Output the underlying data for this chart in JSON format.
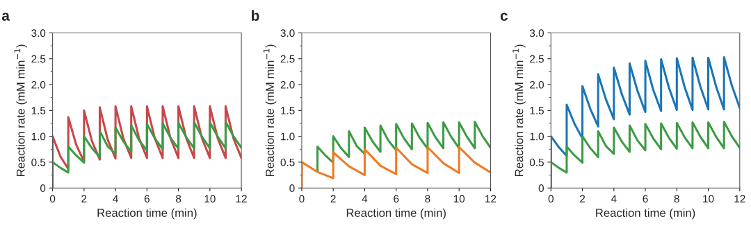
{
  "chart_data": [
    {
      "type": "line",
      "title": "a",
      "xlabel": "Reaction time (min)",
      "ylabel": "Reaction rate (mM min$^{−1}$)",
      "xlim": [
        0,
        12
      ],
      "ylim": [
        0,
        3
      ],
      "xticks": [
        0,
        2,
        4,
        6,
        8,
        10,
        12
      ],
      "yticks": [
        0,
        0.5,
        {
          "value": 1,
          "label": "1.0"
        },
        1.5,
        {
          "value": 2,
          "label": "2.0"
        },
        2.5,
        {
          "value": 3,
          "label": "3.0"
        }
      ],
      "grid": false,
      "marker": "none",
      "line_style": "solid",
      "series": [
        {
          "color": "#c8464a",
          "x": [
            0,
            0,
            0.5,
            1,
            1,
            1.5,
            2,
            2,
            2.5,
            3,
            3,
            3.5,
            4,
            4,
            4.5,
            5,
            5,
            5.5,
            6,
            6,
            6.5,
            7,
            7,
            7.5,
            8,
            8,
            8.5,
            9,
            9,
            9.5,
            10,
            10,
            10.5,
            11,
            11,
            11.5,
            12
          ],
          "values": [
            0,
            1.0,
            0.61,
            0.37,
            1.37,
            0.84,
            0.51,
            1.5,
            0.91,
            0.55,
            1.56,
            0.94,
            0.57,
            1.58,
            0.96,
            0.58,
            1.58,
            0.96,
            0.58,
            1.58,
            0.96,
            0.58,
            1.58,
            0.96,
            0.58,
            1.58,
            0.96,
            0.58,
            1.58,
            0.96,
            0.58,
            1.58,
            0.96,
            0.58,
            1.58,
            0.96,
            0.58
          ]
        },
        {
          "color": "#3d9a45",
          "x": [
            0,
            0.5,
            1,
            1,
            1.5,
            2,
            2,
            2.5,
            3,
            3,
            3.5,
            4,
            4,
            4.5,
            5,
            5,
            5.5,
            6,
            6,
            6.5,
            7,
            7,
            7.5,
            8,
            8,
            8.5,
            9,
            9,
            9.5,
            10,
            10,
            10.5,
            11,
            11,
            11.5,
            12
          ],
          "values": [
            0.5,
            0.39,
            0.3,
            0.8,
            0.63,
            0.49,
            1.0,
            0.77,
            0.6,
            1.1,
            0.81,
            0.66,
            1.17,
            0.9,
            0.7,
            1.21,
            0.92,
            0.73,
            1.24,
            0.96,
            0.75,
            1.25,
            0.97,
            0.76,
            1.26,
            0.98,
            0.77,
            1.27,
            0.99,
            0.77,
            1.27,
            0.99,
            0.77,
            1.28,
            1.0,
            0.78
          ]
        }
      ]
    },
    {
      "type": "line",
      "title": "b",
      "xlabel": "Reaction time (min)",
      "ylabel": "Reaction rate (mM min$^{−1}$)",
      "xlim": [
        0,
        12
      ],
      "ylim": [
        0,
        3
      ],
      "xticks": [
        0,
        2,
        4,
        6,
        8,
        10,
        12
      ],
      "yticks": [
        0,
        0.5,
        {
          "value": 1,
          "label": "1.0"
        },
        1.5,
        {
          "value": 2,
          "label": "2.0"
        },
        2.5,
        {
          "value": 3,
          "label": "3.0"
        }
      ],
      "grid": false,
      "marker": "none",
      "line_style": "solid",
      "series": [
        {
          "color": "#3d9a45",
          "x": [
            1,
            1,
            1.5,
            2,
            2,
            2.5,
            3,
            3,
            3.5,
            4,
            4,
            4.5,
            5,
            5,
            5.5,
            6,
            6,
            6.5,
            7,
            7,
            7.5,
            8,
            8,
            8.5,
            9,
            9,
            9.5,
            10,
            10,
            10.5,
            11,
            11,
            11.5,
            12
          ],
          "values": [
            0.32,
            0.8,
            0.63,
            0.49,
            1.0,
            0.77,
            0.6,
            1.1,
            0.81,
            0.66,
            1.17,
            0.9,
            0.7,
            1.21,
            0.92,
            0.73,
            1.24,
            0.96,
            0.75,
            1.25,
            0.97,
            0.76,
            1.26,
            0.98,
            0.77,
            1.27,
            0.99,
            0.77,
            1.27,
            0.99,
            0.77,
            1.28,
            1.0,
            0.78
          ]
        },
        {
          "color": "#ef7b24",
          "x": [
            0,
            0,
            1,
            2,
            2,
            3,
            4,
            4,
            5,
            6,
            6,
            7,
            8,
            8,
            9,
            10,
            10,
            11,
            12
          ],
          "values": [
            0,
            0.5,
            0.31,
            0.19,
            0.69,
            0.42,
            0.25,
            0.75,
            0.43,
            0.27,
            0.78,
            0.46,
            0.29,
            0.79,
            0.48,
            0.29,
            0.79,
            0.49,
            0.3
          ]
        }
      ]
    },
    {
      "type": "line",
      "title": "c",
      "xlabel": "Reaction time (min)",
      "ylabel": "Reaction rate (mM min$^{−1}$)",
      "xlim": [
        0,
        12
      ],
      "ylim": [
        0,
        3
      ],
      "xticks": [
        0,
        2,
        4,
        6,
        8,
        10,
        12
      ],
      "yticks": [
        0,
        0.5,
        {
          "value": 1,
          "label": "1.0"
        },
        1.5,
        {
          "value": 2,
          "label": "2.0"
        },
        2.5,
        {
          "value": 3,
          "label": "3.0"
        }
      ],
      "grid": false,
      "marker": "none",
      "line_style": "solid",
      "series": [
        {
          "color": "#1b75b6",
          "x": [
            0,
            0,
            0.5,
            1,
            1,
            1.5,
            2,
            2,
            2.5,
            3,
            3,
            3.5,
            4,
            4,
            4.5,
            5,
            5,
            5.5,
            6,
            6,
            6.5,
            7,
            7,
            7.5,
            8,
            8,
            8.5,
            9,
            9,
            9.5,
            10,
            10,
            10.5,
            11,
            11,
            11.5,
            12
          ],
          "values": [
            0,
            1.0,
            0.79,
            0.62,
            1.61,
            1.24,
            0.96,
            1.97,
            1.53,
            1.19,
            2.2,
            1.71,
            1.33,
            2.33,
            1.82,
            1.42,
            2.41,
            1.88,
            1.47,
            2.46,
            1.9,
            1.49,
            2.49,
            1.94,
            1.51,
            2.51,
            1.95,
            1.51,
            2.52,
            1.96,
            1.52,
            2.52,
            1.96,
            1.52,
            2.53,
            1.98,
            1.55
          ]
        },
        {
          "color": "#3d9a45",
          "x": [
            0,
            0.5,
            1,
            1,
            1.5,
            2,
            2,
            2.5,
            3,
            3,
            3.5,
            4,
            4,
            4.5,
            5,
            5,
            5.5,
            6,
            6,
            6.5,
            7,
            7,
            7.5,
            8,
            8,
            8.5,
            9,
            9,
            9.5,
            10,
            10,
            10.5,
            11,
            11,
            11.5,
            12
          ],
          "values": [
            0.5,
            0.39,
            0.3,
            0.8,
            0.63,
            0.49,
            1.0,
            0.77,
            0.6,
            1.1,
            0.81,
            0.66,
            1.17,
            0.9,
            0.7,
            1.21,
            0.92,
            0.73,
            1.24,
            0.96,
            0.75,
            1.25,
            0.97,
            0.76,
            1.26,
            0.98,
            0.77,
            1.27,
            0.99,
            0.77,
            1.27,
            0.99,
            0.77,
            1.28,
            1.0,
            0.78
          ]
        }
      ]
    }
  ]
}
